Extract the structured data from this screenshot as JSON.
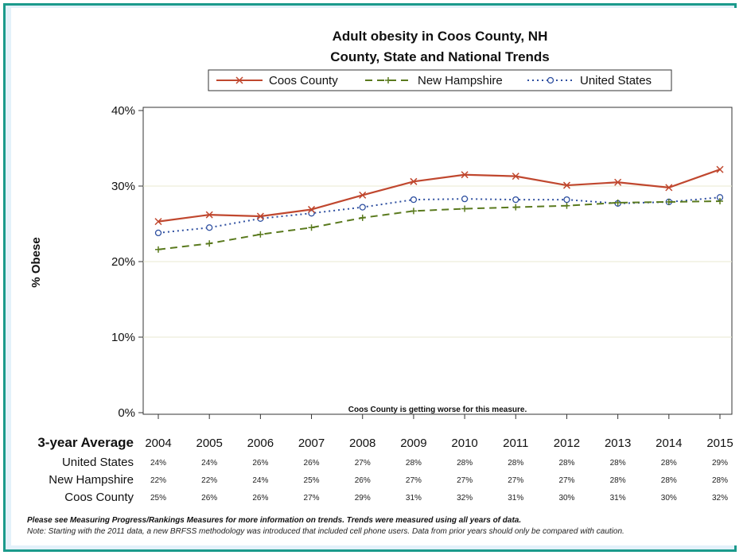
{
  "chart_data": {
    "type": "line",
    "title": "Adult obesity in Coos County, NH",
    "subtitle": "County, State and National Trends",
    "ylabel": "% Obese",
    "xlabel": "",
    "x": [
      "2004",
      "2005",
      "2006",
      "2007",
      "2008",
      "2009",
      "2010",
      "2011",
      "2012",
      "2013",
      "2014",
      "2015"
    ],
    "ylim": [
      0,
      40
    ],
    "yticks": [
      "0%",
      "10%",
      "20%",
      "30%",
      "40%"
    ],
    "ytick_values": [
      0,
      10,
      20,
      30,
      40
    ],
    "grid": "horizontal",
    "legend_position": "top",
    "series": [
      {
        "name": "Coos County",
        "color": "#c0472e",
        "style": "solid",
        "marker": "x",
        "values": [
          25.3,
          26.2,
          26.0,
          26.9,
          28.8,
          30.6,
          31.5,
          31.3,
          30.1,
          30.5,
          29.8,
          32.2
        ]
      },
      {
        "name": "New Hampshire",
        "color": "#5a7a1e",
        "style": "dashed",
        "marker": "plus",
        "values": [
          21.6,
          22.4,
          23.6,
          24.5,
          25.8,
          26.7,
          27.0,
          27.2,
          27.4,
          27.8,
          27.9,
          28.0
        ]
      },
      {
        "name": "United States",
        "color": "#2e4fa0",
        "style": "dotted",
        "marker": "circle",
        "values": [
          23.8,
          24.5,
          25.7,
          26.4,
          27.2,
          28.2,
          28.3,
          28.2,
          28.2,
          27.7,
          27.9,
          28.5
        ]
      }
    ],
    "annotation": "Coos County is getting worse for this measure.",
    "table": {
      "header": "3-year Average",
      "rows": [
        {
          "label": "United States",
          "values": [
            "24%",
            "24%",
            "26%",
            "26%",
            "27%",
            "28%",
            "28%",
            "28%",
            "28%",
            "28%",
            "28%",
            "29%"
          ]
        },
        {
          "label": "New Hampshire",
          "values": [
            "22%",
            "22%",
            "24%",
            "25%",
            "26%",
            "27%",
            "27%",
            "27%",
            "27%",
            "28%",
            "28%",
            "28%"
          ]
        },
        {
          "label": "Coos County",
          "values": [
            "25%",
            "26%",
            "26%",
            "27%",
            "29%",
            "31%",
            "32%",
            "31%",
            "30%",
            "31%",
            "30%",
            "32%"
          ]
        }
      ]
    },
    "notes": [
      "Please see Measuring Progress/Rankings Measures for more information on trends. Trends were measured using all years of data.",
      "Note: Starting with the 2011 data, a new BRFSS methodology was introduced that included cell phone users.  Data from prior years should only be compared with caution."
    ]
  }
}
